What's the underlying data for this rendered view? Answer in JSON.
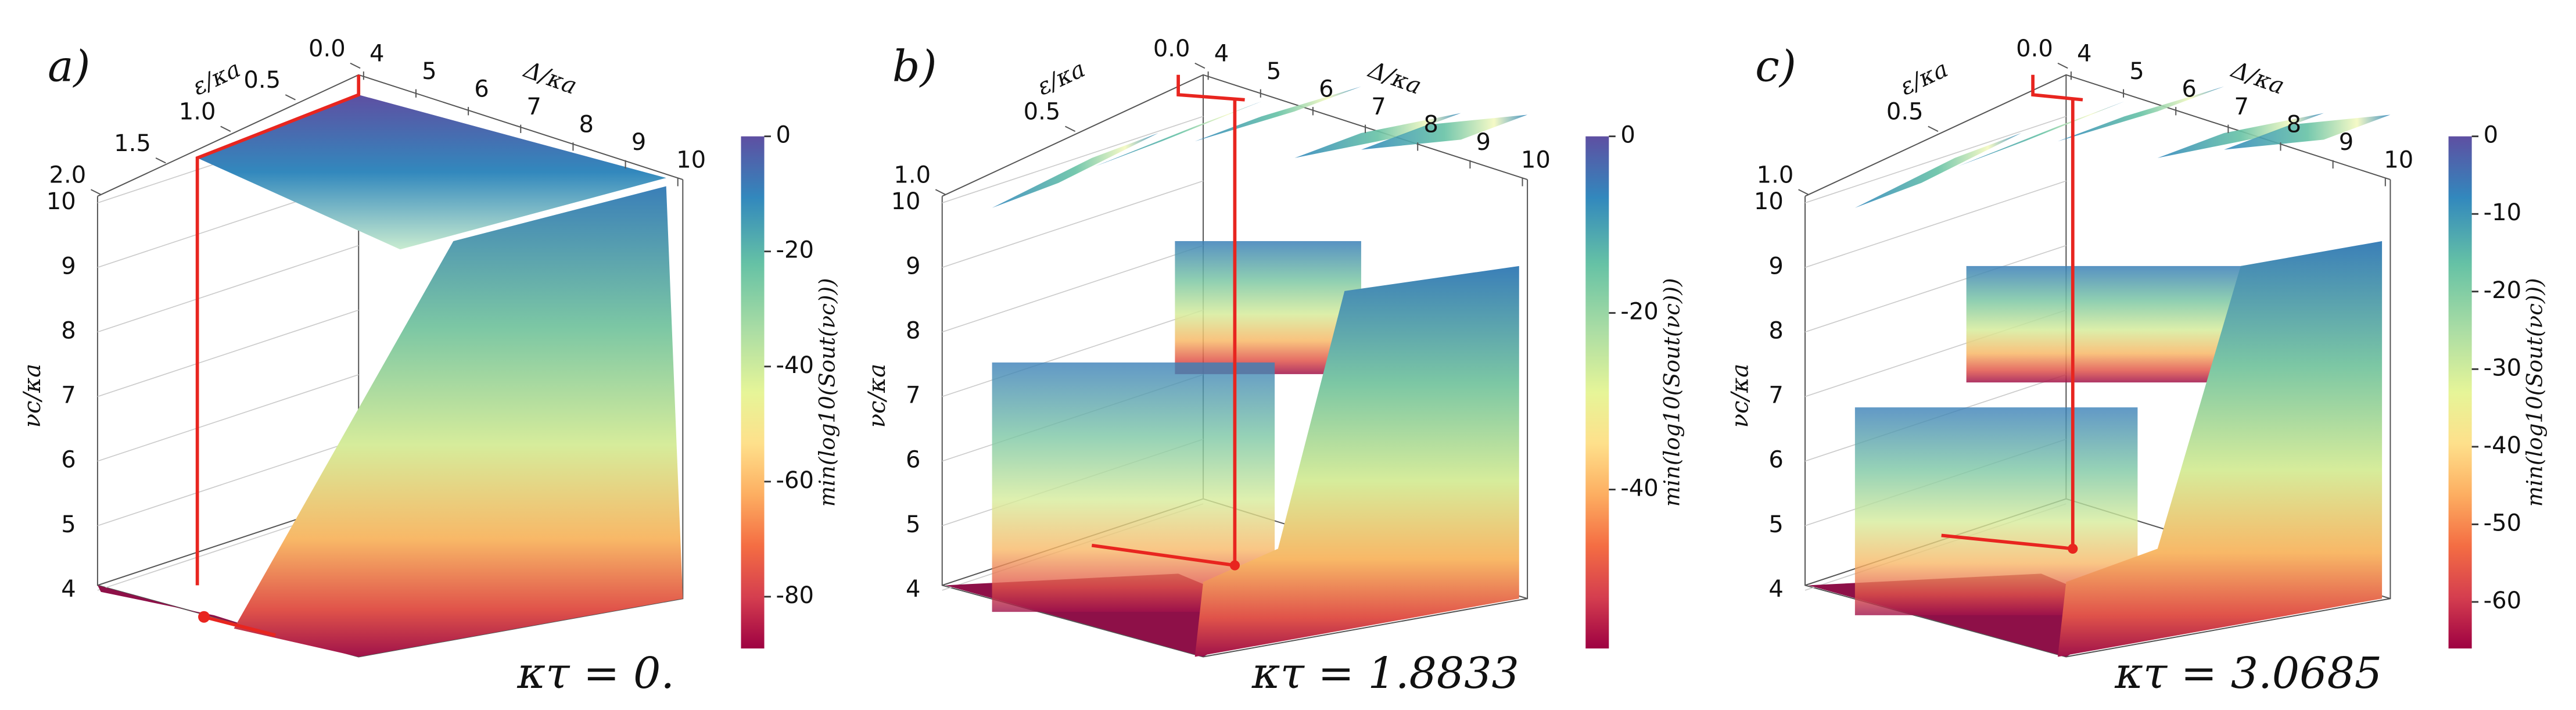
{
  "chart_data": [
    {
      "type": "surface3d",
      "panel_label": "a)",
      "annotation": "κτ = 0.",
      "x_label": "ε/κa",
      "y_label": "Δ/κa",
      "z_label": "νc/κa",
      "colorbar_label": "min(log10(Sout(νc)))",
      "xlim": [
        0,
        2
      ],
      "xticks": [
        {
          "value": 0,
          "label": "0.0"
        },
        0.5,
        {
          "value": 1,
          "label": "1.0"
        },
        1.5,
        {
          "value": 2,
          "label": "2.0"
        }
      ],
      "ylim": [
        4,
        10
      ],
      "yticks": [
        4,
        5,
        6,
        7,
        8,
        9,
        10
      ],
      "zlim": [
        4,
        10
      ],
      "zticks": [
        4,
        5,
        6,
        7,
        8,
        9,
        10
      ],
      "clim": [
        -89,
        0
      ],
      "cticks": [
        0,
        -20,
        -40,
        -60,
        -80
      ]
    },
    {
      "type": "surface3d",
      "panel_label": "b)",
      "annotation": "κτ = 1.8833",
      "x_label": "ε/κa",
      "y_label": "Δ/κa",
      "z_label": "νc/κa",
      "colorbar_label": "min(log10(Sout(νc)))",
      "xlim": [
        0,
        1
      ],
      "xticks": [
        {
          "value": 0,
          "label": "0.0"
        },
        0.5,
        {
          "value": 1,
          "label": "1.0"
        }
      ],
      "ylim": [
        4,
        10
      ],
      "yticks": [
        4,
        5,
        6,
        7,
        8,
        9,
        10
      ],
      "zlim": [
        4,
        10
      ],
      "zticks": [
        4,
        5,
        6,
        7,
        8,
        9,
        10
      ],
      "clim": [
        -58,
        0
      ],
      "cticks": [
        0,
        -20,
        -40
      ]
    },
    {
      "type": "surface3d",
      "panel_label": "c)",
      "annotation": "κτ = 3.0685",
      "x_label": "ε/κa",
      "y_label": "Δ/κa",
      "z_label": "νc/κa",
      "colorbar_label": "min(log10(Sout(νc)))",
      "xlim": [
        0,
        1
      ],
      "xticks": [
        {
          "value": 0,
          "label": "0.0"
        },
        0.5,
        {
          "value": 1,
          "label": "1.0"
        }
      ],
      "ylim": [
        4,
        10
      ],
      "yticks": [
        4,
        5,
        6,
        7,
        8,
        9,
        10
      ],
      "zlim": [
        4,
        10
      ],
      "zticks": [
        4,
        5,
        6,
        7,
        8,
        9,
        10
      ],
      "clim": [
        -66,
        0
      ],
      "cticks": [
        0,
        -10,
        -20,
        -30,
        -40,
        -50,
        -60
      ]
    }
  ]
}
